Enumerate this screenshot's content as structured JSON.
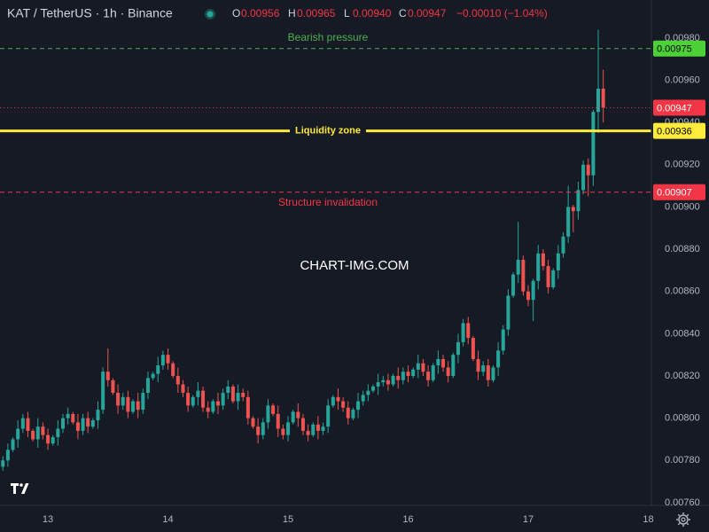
{
  "chart_data": {
    "type": "candlestick",
    "header": {
      "symbol": "KAT / TetherUS · 1h · Binance",
      "fields": [
        {
          "key": "O",
          "value": "0.00956"
        },
        {
          "key": "H",
          "value": "0.00965"
        },
        {
          "key": "L",
          "value": "0.00940"
        },
        {
          "key": "C",
          "value": "0.00947"
        }
      ],
      "change": "−0.00010 (−1.04%)"
    },
    "watermark": "CHART-IMG.COM",
    "up_color": "#26a69a",
    "down_color": "#ef5350",
    "xlim": [
      12.601,
      18.026
    ],
    "xticks": [
      13,
      14,
      15,
      16,
      17,
      18
    ],
    "ylim": [
      0.007587,
      0.00998
    ],
    "yticks": [
      {
        "value": 0.0076,
        "label": "0.00760"
      },
      {
        "value": 0.0078,
        "label": "0.00780"
      },
      {
        "value": 0.008,
        "label": "0.00800"
      },
      {
        "value": 0.0082,
        "label": "0.00820"
      },
      {
        "value": 0.0084,
        "label": "0.00840"
      },
      {
        "value": 0.0086,
        "label": "0.00860"
      },
      {
        "value": 0.0088,
        "label": "0.00880"
      },
      {
        "value": 0.009,
        "label": "0.00900"
      },
      {
        "value": 0.0092,
        "label": "0.00920"
      },
      {
        "value": 0.0094,
        "label": "0.00940"
      },
      {
        "value": 0.0096,
        "label": "0.00960"
      },
      {
        "value": 0.0098,
        "label": "0.00980"
      }
    ],
    "grid": true,
    "levels": [
      {
        "name": "Bearish pressure",
        "value": 0.00975,
        "color": "#4caf50",
        "tag_color": "#4cd137",
        "text_color": "#000000",
        "style": "dashed",
        "name_position": "above"
      },
      {
        "value": 0.00947,
        "color": "#f23645",
        "tag_color": "#f23645",
        "text_color": "#ffffff",
        "style": "dotted"
      },
      {
        "name": "Liquidity zone",
        "value": 0.00936,
        "color": "#ffeb3b",
        "tag_color": "#ffeb3b",
        "text_color": "#000000",
        "style": "solid",
        "name_position": "on"
      },
      {
        "name": "Structure invalidation",
        "value": 0.00907,
        "color": "#f23645",
        "tag_color": "#f23645",
        "text_color": "#ffffff",
        "style": "dashed",
        "name_position": "below"
      }
    ],
    "x": [
      12.625,
      12.6667,
      12.7083,
      12.75,
      12.7917,
      12.8333,
      12.875,
      12.9167,
      12.9583,
      13,
      13.0417,
      13.0833,
      13.125,
      13.1667,
      13.2083,
      13.25,
      13.2917,
      13.3333,
      13.375,
      13.4167,
      13.4583,
      13.5,
      13.5417,
      13.5833,
      13.625,
      13.6667,
      13.7083,
      13.75,
      13.7917,
      13.8333,
      13.875,
      13.9167,
      13.9583,
      14,
      14.0417,
      14.0833,
      14.125,
      14.1667,
      14.2083,
      14.25,
      14.2917,
      14.3333,
      14.375,
      14.4167,
      14.4583,
      14.5,
      14.5417,
      14.5833,
      14.625,
      14.6667,
      14.7083,
      14.75,
      14.7917,
      14.8333,
      14.875,
      14.9167,
      14.9583,
      15,
      15.0417,
      15.0833,
      15.125,
      15.1667,
      15.2083,
      15.25,
      15.2917,
      15.3333,
      15.375,
      15.4167,
      15.4583,
      15.5,
      15.5417,
      15.5833,
      15.625,
      15.6667,
      15.7083,
      15.75,
      15.7917,
      15.8333,
      15.875,
      15.9167,
      15.9583,
      16,
      16.0417,
      16.0833,
      16.125,
      16.1667,
      16.2083,
      16.25,
      16.2917,
      16.3333,
      16.375,
      16.4167,
      16.4583,
      16.5,
      16.5417,
      16.5833,
      16.625,
      16.6667,
      16.7083,
      16.75,
      16.7917,
      16.8333,
      16.875,
      16.9167,
      16.9583,
      17,
      17.0417,
      17.0833,
      17.125,
      17.1667,
      17.2083,
      17.25,
      17.2917,
      17.3333,
      17.375,
      17.4167,
      17.4583,
      17.5,
      17.5417,
      17.5833,
      17.625
    ],
    "open": [
      0.00777,
      0.0078,
      0.00785,
      0.0079,
      0.00795,
      0.008,
      0.00794,
      0.0079,
      0.00796,
      0.00792,
      0.00788,
      0.00791,
      0.00795,
      0.008,
      0.00802,
      0.00798,
      0.00794,
      0.008,
      0.00796,
      0.00799,
      0.00804,
      0.00822,
      0.00818,
      0.00812,
      0.00806,
      0.0081,
      0.00803,
      0.00808,
      0.00804,
      0.00812,
      0.00819,
      0.00821,
      0.00825,
      0.0083,
      0.00826,
      0.0082,
      0.00816,
      0.00812,
      0.00806,
      0.0081,
      0.00813,
      0.00805,
      0.00803,
      0.00808,
      0.00806,
      0.00812,
      0.00815,
      0.00808,
      0.00812,
      0.0081,
      0.008,
      0.00796,
      0.00792,
      0.00798,
      0.00806,
      0.00802,
      0.00795,
      0.00792,
      0.00798,
      0.00803,
      0.008,
      0.00794,
      0.00792,
      0.00797,
      0.00794,
      0.00796,
      0.00806,
      0.0081,
      0.00808,
      0.00805,
      0.008,
      0.00804,
      0.00808,
      0.00811,
      0.00813,
      0.00815,
      0.00817,
      0.00818,
      0.00816,
      0.0082,
      0.00818,
      0.00822,
      0.0082,
      0.00823,
      0.00826,
      0.00822,
      0.00818,
      0.00825,
      0.00828,
      0.00824,
      0.0082,
      0.0083,
      0.00836,
      0.00845,
      0.00838,
      0.00828,
      0.00822,
      0.00825,
      0.00818,
      0.00824,
      0.00832,
      0.00842,
      0.00858,
      0.00868,
      0.00875,
      0.0086,
      0.00856,
      0.00865,
      0.00878,
      0.00872,
      0.00862,
      0.0087,
      0.00878,
      0.00886,
      0.009,
      0.00898,
      0.00908,
      0.0092,
      0.00915,
      0.00945,
      0.00956
    ],
    "high": [
      0.00782,
      0.00788,
      0.00791,
      0.00799,
      0.00802,
      0.00803,
      0.00795,
      0.008,
      0.00798,
      0.00795,
      0.00792,
      0.00799,
      0.00802,
      0.00805,
      0.00803,
      0.00802,
      0.00802,
      0.00803,
      0.008,
      0.00808,
      0.00824,
      0.00833,
      0.00819,
      0.00816,
      0.00812,
      0.00813,
      0.00809,
      0.00812,
      0.00814,
      0.00822,
      0.00822,
      0.00829,
      0.00832,
      0.00833,
      0.00827,
      0.00824,
      0.00818,
      0.00815,
      0.00811,
      0.00817,
      0.00815,
      0.00808,
      0.00809,
      0.00812,
      0.00814,
      0.00818,
      0.00816,
      0.00816,
      0.00814,
      0.00813,
      0.00801,
      0.008,
      0.008,
      0.00809,
      0.00807,
      0.00806,
      0.00797,
      0.00801,
      0.00804,
      0.00807,
      0.00802,
      0.00797,
      0.00798,
      0.00801,
      0.00798,
      0.00809,
      0.00811,
      0.00814,
      0.0081,
      0.00808,
      0.00805,
      0.00812,
      0.00813,
      0.00816,
      0.00816,
      0.00821,
      0.0082,
      0.00821,
      0.00821,
      0.00824,
      0.00824,
      0.00825,
      0.00824,
      0.0083,
      0.00828,
      0.00825,
      0.00826,
      0.00832,
      0.0083,
      0.00827,
      0.00831,
      0.0084,
      0.00847,
      0.00848,
      0.00839,
      0.00832,
      0.00827,
      0.00828,
      0.00825,
      0.00836,
      0.00844,
      0.00861,
      0.00869,
      0.00893,
      0.00877,
      0.00863,
      0.00866,
      0.00882,
      0.0088,
      0.00875,
      0.00871,
      0.00882,
      0.00888,
      0.0091,
      0.00901,
      0.00912,
      0.00922,
      0.00923,
      0.00946,
      0.00984,
      0.00965
    ],
    "low": [
      0.00775,
      0.00777,
      0.00784,
      0.00786,
      0.00793,
      0.00791,
      0.00789,
      0.00786,
      0.0079,
      0.00785,
      0.00787,
      0.00787,
      0.00793,
      0.00797,
      0.00797,
      0.0079,
      0.00792,
      0.00793,
      0.00795,
      0.00795,
      0.00802,
      0.00815,
      0.00811,
      0.00802,
      0.00804,
      0.008,
      0.00802,
      0.008,
      0.00802,
      0.00809,
      0.00818,
      0.00817,
      0.00823,
      0.00823,
      0.00819,
      0.00812,
      0.0081,
      0.00803,
      0.00805,
      0.00806,
      0.00803,
      0.008,
      0.00802,
      0.00802,
      0.00804,
      0.00809,
      0.00807,
      0.00804,
      0.00808,
      0.00797,
      0.00795,
      0.00788,
      0.0079,
      0.00795,
      0.00801,
      0.00791,
      0.0079,
      0.00789,
      0.00797,
      0.00796,
      0.00792,
      0.00789,
      0.00791,
      0.0079,
      0.00792,
      0.00793,
      0.00805,
      0.00804,
      0.00803,
      0.00797,
      0.00799,
      0.008,
      0.00806,
      0.00808,
      0.00812,
      0.00811,
      0.00815,
      0.00813,
      0.00815,
      0.00814,
      0.00816,
      0.00817,
      0.00819,
      0.00819,
      0.0082,
      0.00815,
      0.00817,
      0.00821,
      0.00822,
      0.00817,
      0.00819,
      0.00826,
      0.00834,
      0.00835,
      0.00827,
      0.00818,
      0.0082,
      0.00815,
      0.00817,
      0.0082,
      0.0083,
      0.00839,
      0.00857,
      0.00864,
      0.00858,
      0.00853,
      0.00846,
      0.00861,
      0.0087,
      0.00859,
      0.00861,
      0.00866,
      0.00876,
      0.00883,
      0.00888,
      0.00894,
      0.00906,
      0.00905,
      0.0091,
      0.00935,
      0.0094
    ],
    "close": [
      0.0078,
      0.00785,
      0.0079,
      0.00795,
      0.008,
      0.00794,
      0.0079,
      0.00796,
      0.00792,
      0.00788,
      0.00791,
      0.00795,
      0.008,
      0.00802,
      0.00798,
      0.00794,
      0.008,
      0.00796,
      0.00799,
      0.00804,
      0.00822,
      0.00818,
      0.00812,
      0.00806,
      0.0081,
      0.00803,
      0.00808,
      0.00804,
      0.00812,
      0.00819,
      0.00821,
      0.00825,
      0.0083,
      0.00826,
      0.0082,
      0.00816,
      0.00812,
      0.00806,
      0.0081,
      0.00813,
      0.00805,
      0.00803,
      0.00808,
      0.00806,
      0.00812,
      0.00815,
      0.00808,
      0.00812,
      0.0081,
      0.008,
      0.00796,
      0.00792,
      0.00798,
      0.00806,
      0.00802,
      0.00795,
      0.00792,
      0.00798,
      0.00803,
      0.008,
      0.00794,
      0.00792,
      0.00797,
      0.00794,
      0.00796,
      0.00806,
      0.0081,
      0.00808,
      0.00805,
      0.008,
      0.00804,
      0.00808,
      0.00811,
      0.00813,
      0.00815,
      0.00817,
      0.00818,
      0.00816,
      0.0082,
      0.00818,
      0.00822,
      0.0082,
      0.00823,
      0.00826,
      0.00822,
      0.00818,
      0.00825,
      0.00828,
      0.00824,
      0.0082,
      0.0083,
      0.00836,
      0.00845,
      0.00838,
      0.00828,
      0.00822,
      0.00825,
      0.00818,
      0.00824,
      0.00832,
      0.00842,
      0.00858,
      0.00868,
      0.00875,
      0.0086,
      0.00856,
      0.00865,
      0.00878,
      0.00872,
      0.00862,
      0.0087,
      0.00878,
      0.00886,
      0.009,
      0.00898,
      0.00908,
      0.0092,
      0.00915,
      0.00945,
      0.00956,
      0.00947
    ]
  }
}
